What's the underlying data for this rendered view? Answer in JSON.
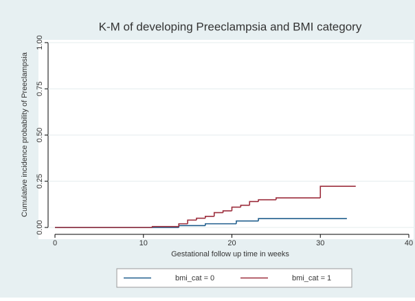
{
  "chart_data": {
    "type": "step",
    "title": "K-M of developing Preeclampsia and BMI category",
    "xlabel": "Gestational follow up time in weeks",
    "ylabel": "Cumulative incidence probability of Preeclampsia",
    "xlim": [
      0,
      40
    ],
    "xticks": [
      0,
      10,
      20,
      30,
      40
    ],
    "ylim": [
      0,
      1
    ],
    "yticks": [
      {
        "value": 0,
        "label": "0.00"
      },
      {
        "value": 0.25,
        "label": "0.25"
      },
      {
        "value": 0.5,
        "label": "0.50"
      },
      {
        "value": 0.75,
        "label": "0.75"
      },
      {
        "value": 1,
        "label": "1.00"
      }
    ],
    "grid": true,
    "legend": "bottom",
    "series": [
      {
        "name": "bmi_cat = 0",
        "color": "#1f5d8c",
        "x": [
          0,
          14,
          17,
          20.5,
          23,
          33
        ],
        "values": [
          0,
          0.01,
          0.02,
          0.035,
          0.048,
          0.048
        ]
      },
      {
        "name": "bmi_cat = 1",
        "color": "#9b2b3a",
        "x": [
          0,
          11,
          14,
          15,
          16,
          17,
          18,
          19,
          20,
          21,
          22,
          23,
          25,
          30,
          34
        ],
        "values": [
          0,
          0.005,
          0.02,
          0.04,
          0.05,
          0.06,
          0.08,
          0.09,
          0.11,
          0.12,
          0.14,
          0.15,
          0.16,
          0.223,
          0.223
        ]
      }
    ]
  }
}
